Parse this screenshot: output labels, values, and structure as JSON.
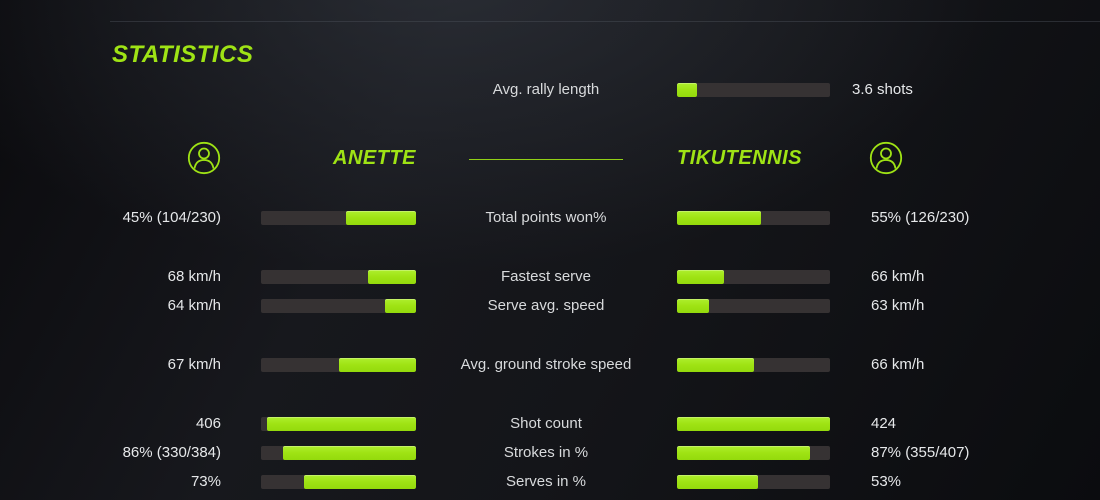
{
  "header": {
    "title": "STATISTICS"
  },
  "colors": {
    "accent": "#9fe315",
    "bar_track": "#363233",
    "background": "#101116",
    "text": "#e6e8ea"
  },
  "icons": {
    "left_player": "user-circle-icon",
    "right_player": "user-circle-icon"
  },
  "chart_data": {
    "type": "bar",
    "orientation": "horizontal-paired",
    "title": "STATISTICS",
    "grid": false,
    "legend_position": "top",
    "avg_rally": {
      "label": "Avg. rally length",
      "display": "3.6 shots",
      "value_shots": 3.6,
      "fill_pct": 13
    },
    "categories": [
      "Total points won%",
      "Fastest serve",
      "Serve avg. speed",
      "Avg. ground stroke speed",
      "Shot count",
      "Strokes in %",
      "Serves in %"
    ],
    "series": [
      {
        "name": "ANETTE",
        "side": "left",
        "bar_fill_direction": "right-to-left",
        "display": [
          "45% (104/230)",
          "68 km/h",
          "64 km/h",
          "67 km/h",
          "406",
          "86% (330/384)",
          "73%"
        ],
        "values": [
          45,
          68,
          64,
          67,
          406,
          86,
          73
        ],
        "fill_pct": [
          45,
          31,
          20,
          50,
          96,
          86,
          72
        ]
      },
      {
        "name": "TIKUTENNIS",
        "side": "right",
        "bar_fill_direction": "left-to-right",
        "display": [
          "55% (126/230)",
          "66 km/h",
          "63 km/h",
          "66 km/h",
          "424",
          "87% (355/407)",
          "53%"
        ],
        "values": [
          55,
          66,
          63,
          66,
          424,
          87,
          53
        ],
        "fill_pct": [
          55,
          31,
          21,
          50,
          100,
          87,
          53
        ]
      }
    ]
  }
}
